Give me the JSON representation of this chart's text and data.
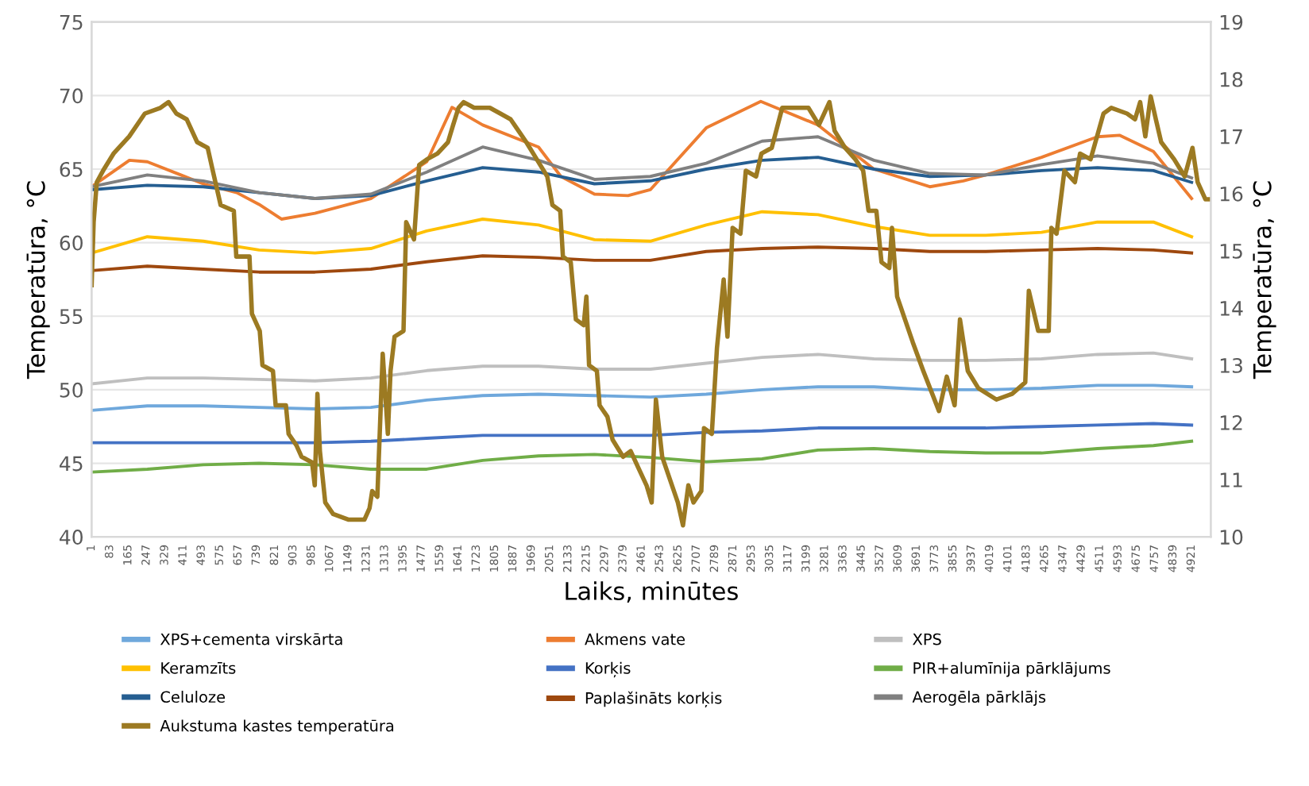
{
  "chart_data": {
    "type": "line",
    "xlabel": "Laiks, minūtes",
    "ylabel": "Temperatūra, °C",
    "y2label": "Temperatūra, °C",
    "xlim": [
      1,
      5007
    ],
    "xticks": [
      1,
      83,
      165,
      247,
      329,
      411,
      493,
      575,
      657,
      739,
      821,
      903,
      985,
      1067,
      1149,
      1231,
      1313,
      1395,
      1477,
      1559,
      1641,
      1723,
      1805,
      1887,
      1969,
      2051,
      2133,
      2215,
      2297,
      2379,
      2461,
      2543,
      2625,
      2707,
      2789,
      2871,
      2953,
      3035,
      3117,
      3199,
      3281,
      3363,
      3445,
      3527,
      3609,
      3691,
      3773,
      3855,
      3937,
      4019,
      4101,
      4183,
      4265,
      4347,
      4429,
      4511,
      4593,
      4675,
      4757,
      4839,
      4921
    ],
    "ylim": [
      40,
      75
    ],
    "yticks": [
      40,
      45,
      50,
      55,
      60,
      65,
      70,
      75
    ],
    "y2lim": [
      10,
      19
    ],
    "y2ticks": [
      10,
      11,
      12,
      13,
      14,
      15,
      16,
      17,
      18,
      19
    ],
    "grid": "y",
    "legend": "bottom",
    "marker": "none",
    "line_style": "solid",
    "x": [
      1,
      250,
      500,
      750,
      1000,
      1250,
      1500,
      1750,
      2000,
      2250,
      2500,
      2750,
      3000,
      3250,
      3500,
      3750,
      4000,
      4250,
      4500,
      4750,
      4921
    ],
    "series": [
      {
        "name": "XPS+cementa virskārta",
        "color": "#6fa8dc",
        "values": [
          48.6,
          48.9,
          48.9,
          48.8,
          48.7,
          48.8,
          49.3,
          49.6,
          49.7,
          49.6,
          49.5,
          49.7,
          50.0,
          50.2,
          50.2,
          50.0,
          50.0,
          50.1,
          50.3,
          50.3,
          50.2
        ]
      },
      {
        "name": "Akmens vate",
        "color": "#ed7d31",
        "x": [
          1,
          170,
          250,
          400,
          500,
          650,
          750,
          850,
          1000,
          1250,
          1500,
          1613,
          1750,
          2000,
          2100,
          2250,
          2400,
          2500,
          2750,
          2994,
          3250,
          3500,
          3750,
          3900,
          4000,
          4250,
          4500,
          4600,
          4750,
          4921
        ],
        "values": [
          63.8,
          65.6,
          65.5,
          64.6,
          64.0,
          63.4,
          62.6,
          61.6,
          62.0,
          63.0,
          65.5,
          69.2,
          68.0,
          66.5,
          64.5,
          63.3,
          63.2,
          63.6,
          67.8,
          69.6,
          68.0,
          65.0,
          63.8,
          64.2,
          64.6,
          65.8,
          67.2,
          67.3,
          66.2,
          63.0
        ]
      },
      {
        "name": "XPS",
        "color": "#bfbfbf",
        "values": [
          50.4,
          50.8,
          50.8,
          50.7,
          50.6,
          50.8,
          51.3,
          51.6,
          51.6,
          51.4,
          51.4,
          51.8,
          52.2,
          52.4,
          52.1,
          52.0,
          52.0,
          52.1,
          52.4,
          52.5,
          52.1
        ]
      },
      {
        "name": "Keramzīts",
        "color": "#ffc000",
        "values": [
          59.3,
          60.4,
          60.1,
          59.5,
          59.3,
          59.6,
          60.8,
          61.6,
          61.2,
          60.2,
          60.1,
          61.2,
          62.1,
          61.9,
          61.1,
          60.5,
          60.5,
          60.7,
          61.4,
          61.4,
          60.4
        ]
      },
      {
        "name": "Korķis",
        "color": "#4472c4",
        "values": [
          46.4,
          46.4,
          46.4,
          46.4,
          46.4,
          46.5,
          46.7,
          46.9,
          46.9,
          46.9,
          46.9,
          47.1,
          47.2,
          47.4,
          47.4,
          47.4,
          47.4,
          47.5,
          47.6,
          47.7,
          47.6
        ]
      },
      {
        "name": "PIR+alumīnija pārklājums",
        "color": "#70ad47",
        "values": [
          44.4,
          44.6,
          44.9,
          45.0,
          44.9,
          44.6,
          44.6,
          45.2,
          45.5,
          45.6,
          45.4,
          45.1,
          45.3,
          45.9,
          46.0,
          45.8,
          45.7,
          45.7,
          46.0,
          46.2,
          46.5
        ]
      },
      {
        "name": "Celuloze",
        "color": "#255e91",
        "values": [
          63.6,
          63.9,
          63.8,
          63.4,
          63.0,
          63.2,
          64.2,
          65.1,
          64.8,
          64.0,
          64.2,
          65.0,
          65.6,
          65.8,
          65.0,
          64.5,
          64.6,
          64.9,
          65.1,
          64.9,
          64.1
        ]
      },
      {
        "name": "Paplašināts korķis",
        "color": "#9e480e",
        "values": [
          58.1,
          58.4,
          58.2,
          58.0,
          58.0,
          58.2,
          58.7,
          59.1,
          59.0,
          58.8,
          58.8,
          59.4,
          59.6,
          59.7,
          59.6,
          59.4,
          59.4,
          59.5,
          59.6,
          59.5,
          59.3
        ]
      },
      {
        "name": "Aerogēla pārklājs",
        "color": "#808080",
        "values": [
          63.8,
          64.6,
          64.2,
          63.4,
          63.0,
          63.3,
          64.8,
          66.5,
          65.6,
          64.3,
          64.5,
          65.4,
          66.9,
          67.2,
          65.6,
          64.7,
          64.6,
          65.3,
          65.9,
          65.4,
          64.4
        ]
      },
      {
        "name": "Aukstuma kastes temperatūra",
        "color": "#9c7a22",
        "axis": "y2",
        "x": [
          1,
          10,
          24,
          52,
          99,
          169,
          239,
          309,
          345,
          380,
          426,
          473,
          520,
          543,
          578,
          637,
          648,
          707,
          718,
          753,
          765,
          812,
          824,
          870,
          882,
          917,
          940,
          987,
          999,
          1011,
          1022,
          1046,
          1081,
          1151,
          1221,
          1244,
          1256,
          1279,
          1303,
          1326,
          1338,
          1356,
          1396,
          1408,
          1443,
          1466,
          1501,
          1548,
          1595,
          1618,
          1642,
          1665,
          1712,
          1782,
          1829,
          1875,
          1910,
          1945,
          1992,
          2039,
          2062,
          2097,
          2109,
          2144,
          2167,
          2202,
          2214,
          2226,
          2261,
          2273,
          2308,
          2331,
          2378,
          2412,
          2447,
          2483,
          2506,
          2525,
          2553,
          2588,
          2623,
          2646,
          2670,
          2693,
          2728,
          2740,
          2775,
          2798,
          2828,
          2845,
          2868,
          2903,
          2927,
          2973,
          2997,
          3043,
          3090,
          3137,
          3207,
          3254,
          3301,
          3324,
          3371,
          3417,
          3452,
          3476,
          3511,
          3534,
          3569,
          3581,
          3604,
          3639,
          3674,
          3721,
          3791,
          3826,
          3861,
          3885,
          3920,
          3967,
          4048,
          4118,
          4177,
          4193,
          4235,
          4282,
          4294,
          4317,
          4352,
          4399,
          4422,
          4469,
          4527,
          4562,
          4632,
          4668,
          4691,
          4714,
          4738,
          4761,
          4785,
          4843,
          4890,
          4925,
          4948,
          4983,
          5007
        ],
        "values": [
          14.4,
          15.5,
          16.2,
          16.4,
          16.7,
          17.0,
          17.4,
          17.5,
          17.6,
          17.4,
          17.3,
          16.9,
          16.8,
          16.4,
          15.8,
          15.7,
          14.9,
          14.9,
          13.9,
          13.6,
          13.0,
          12.9,
          12.3,
          12.3,
          11.8,
          11.6,
          11.4,
          11.3,
          10.9,
          12.5,
          11.5,
          10.6,
          10.4,
          10.3,
          10.3,
          10.5,
          10.8,
          10.7,
          13.2,
          11.8,
          12.9,
          13.5,
          13.6,
          15.5,
          15.2,
          16.5,
          16.6,
          16.7,
          16.9,
          17.2,
          17.5,
          17.6,
          17.5,
          17.5,
          17.4,
          17.3,
          17.1,
          16.9,
          16.6,
          16.3,
          15.8,
          15.7,
          14.9,
          14.8,
          13.8,
          13.7,
          14.2,
          13.0,
          12.9,
          12.3,
          12.1,
          11.7,
          11.4,
          11.5,
          11.2,
          10.9,
          10.6,
          12.4,
          11.4,
          11.0,
          10.6,
          10.2,
          10.9,
          10.6,
          10.8,
          11.9,
          11.8,
          13.3,
          14.5,
          13.5,
          15.4,
          15.3,
          16.4,
          16.3,
          16.7,
          16.8,
          17.5,
          17.5,
          17.5,
          17.2,
          17.6,
          17.1,
          16.8,
          16.6,
          16.4,
          15.7,
          15.7,
          14.8,
          14.7,
          15.4,
          14.2,
          13.8,
          13.4,
          12.9,
          12.2,
          12.8,
          12.3,
          13.8,
          12.9,
          12.6,
          12.4,
          12.5,
          12.7,
          14.3,
          13.6,
          13.6,
          15.4,
          15.3,
          16.4,
          16.2,
          16.7,
          16.6,
          17.4,
          17.5,
          17.4,
          17.3,
          17.6,
          17.0,
          17.7,
          17.3,
          16.9,
          16.6,
          16.3,
          16.8,
          16.2,
          15.9,
          15.9
        ]
      }
    ]
  }
}
